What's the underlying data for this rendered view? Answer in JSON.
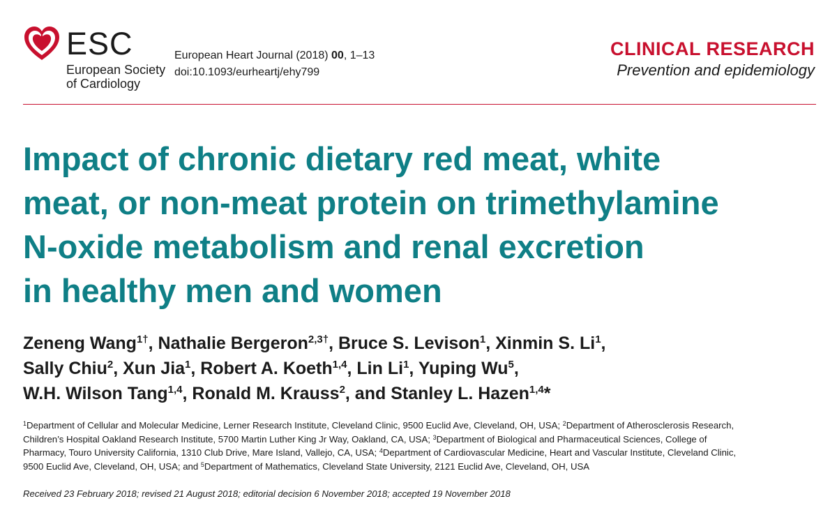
{
  "header": {
    "logo": {
      "icon": "esc-heart-logo-icon",
      "brand_color": "#c8102e",
      "word": "ESC",
      "line1": "European Society",
      "line2": "of Cardiology"
    },
    "journal": {
      "name": "European Heart Journal (2018) ",
      "volume": "00",
      "pages": ", 1–13",
      "doi": "doi:10.1093/eurheartj/ehy799"
    },
    "section": {
      "main": "CLINICAL RESEARCH",
      "sub": "Prevention and epidemiology"
    }
  },
  "title": {
    "lines": [
      "Impact of chronic dietary red meat, white",
      "meat, or non-meat protein on trimethylamine",
      "N-oxide metabolism and renal excretion",
      "in healthy men and women"
    ],
    "color": "#0f7f86"
  },
  "authors": {
    "lines": [
      [
        {
          "name": "Zeneng Wang",
          "sup": "1†",
          "sep": ", "
        },
        {
          "name": "Nathalie Bergeron",
          "sup": "2,3†",
          "sep": ", "
        },
        {
          "name": "Bruce S. Levison",
          "sup": "1",
          "sep": ", "
        },
        {
          "name": "Xinmin S. Li",
          "sup": "1",
          "sep": ","
        }
      ],
      [
        {
          "name": "Sally Chiu",
          "sup": "2",
          "sep": ", "
        },
        {
          "name": "Xun Jia",
          "sup": "1",
          "sep": ", "
        },
        {
          "name": "Robert A. Koeth",
          "sup": "1,4",
          "sep": ", "
        },
        {
          "name": "Lin Li",
          "sup": "1",
          "sep": ", "
        },
        {
          "name": "Yuping Wu",
          "sup": "5",
          "sep": ","
        }
      ],
      [
        {
          "name": "W.H. Wilson Tang",
          "sup": "1,4",
          "sep": ", "
        },
        {
          "name": "Ronald M. Krauss",
          "sup": "2",
          "sep": ", and "
        },
        {
          "name": "Stanley L. Hazen",
          "sup": "1,4",
          "sep": "*"
        }
      ]
    ]
  },
  "affiliations": {
    "lines": [
      [
        {
          "sup": "1",
          "text": "Department of Cellular and Molecular Medicine, Lerner Research Institute, Cleveland Clinic, 9500 Euclid Ave, Cleveland, OH, USA; "
        },
        {
          "sup": "2",
          "text": "Department of Atherosclerosis Research,"
        }
      ],
      [
        {
          "sup": "",
          "text": "Children’s Hospital Oakland Research Institute, 5700 Martin Luther King Jr Way, Oakland, CA, USA; "
        },
        {
          "sup": "3",
          "text": "Department of Biological and Pharmaceutical Sciences, College of"
        }
      ],
      [
        {
          "sup": "",
          "text": "Pharmacy, Touro University California, 1310 Club Drive, Mare Island, Vallejo, CA, USA; "
        },
        {
          "sup": "4",
          "text": "Department of Cardiovascular Medicine, Heart and Vascular Institute, Cleveland Clinic,"
        }
      ],
      [
        {
          "sup": "",
          "text": "9500 Euclid Ave, Cleveland, OH, USA; and "
        },
        {
          "sup": "5",
          "text": "Department of Mathematics, Cleveland State University, 2121 Euclid Ave, Cleveland, OH, USA"
        }
      ]
    ]
  },
  "dates": "Received 23 February 2018; revised 21 August 2018; editorial decision 6 November 2018; accepted 19 November 2018"
}
